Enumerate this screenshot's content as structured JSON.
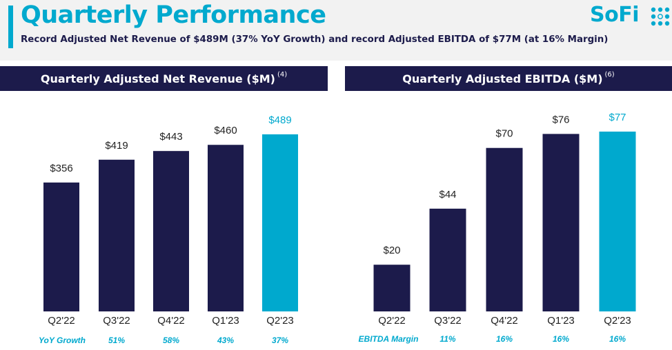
{
  "header": {
    "title": "Quarterly Performance",
    "subtitle": "Record Adjusted Net Revenue of $489M (37% YoY Growth) and record Adjusted EBITDA of $77M (at 16% Margin)",
    "logo_text": "SoFi",
    "logo_icon": "sofi-dots-icon"
  },
  "colors": {
    "navy": "#1c1b4b",
    "teal": "#00a9ce",
    "label": "#222222",
    "header_bg": "#f2f2f2"
  },
  "chart_data": [
    {
      "type": "bar",
      "title": "Quarterly Adjusted Net Revenue ($M)",
      "title_footnote": "(4)",
      "categories": [
        "Q2'22",
        "Q3'22",
        "Q4'22",
        "Q1'23",
        "Q2'23"
      ],
      "values": [
        356,
        419,
        443,
        460,
        489
      ],
      "value_labels": [
        "$356",
        "$419",
        "$443",
        "$460",
        "$489"
      ],
      "highlight_last": true,
      "ylim": [
        0,
        489
      ],
      "grid": false,
      "footer_row": {
        "label": "YoY Growth",
        "values": [
          "",
          "51%",
          "58%",
          "43%",
          "37%"
        ]
      }
    },
    {
      "type": "bar",
      "title": "Quarterly Adjusted EBITDA ($M)",
      "title_footnote": "(6)",
      "categories": [
        "Q2'22",
        "Q3'22",
        "Q4'22",
        "Q1'23",
        "Q2'23"
      ],
      "values": [
        20,
        44,
        70,
        76,
        77
      ],
      "value_labels": [
        "$20",
        "$44",
        "$70",
        "$76",
        "$77"
      ],
      "highlight_last": true,
      "ylim": [
        0,
        77
      ],
      "grid": false,
      "footer_row": {
        "label": "EBITDA Margin",
        "values": [
          "",
          "11%",
          "16%",
          "16%",
          "16%"
        ]
      }
    }
  ]
}
